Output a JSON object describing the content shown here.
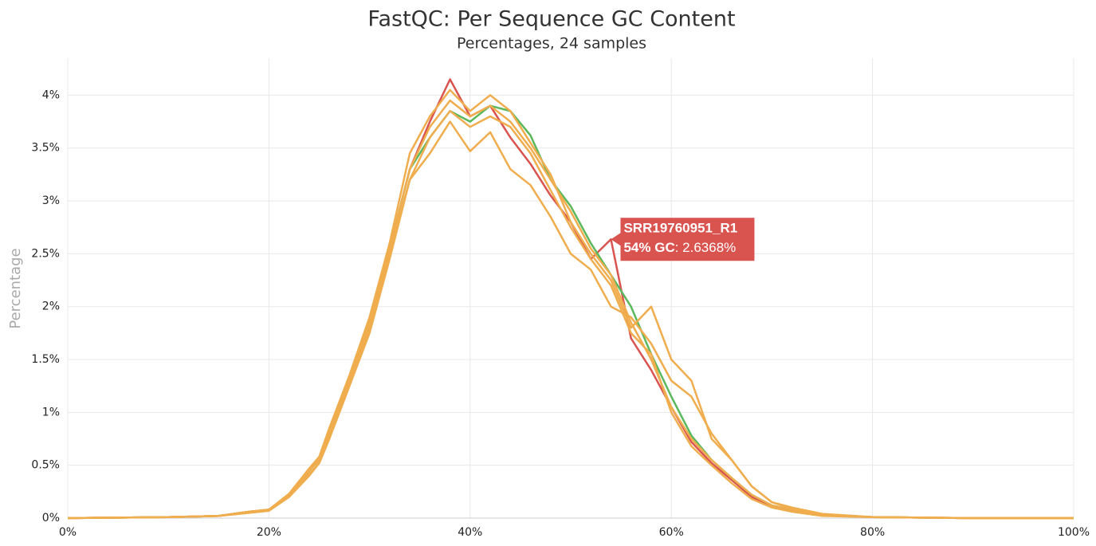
{
  "chart_data": {
    "type": "line",
    "title": "FastQC: Per Sequence GC Content",
    "subtitle": "Percentages, 24 samples",
    "y_label": "Percentage",
    "xlim": [
      0,
      100
    ],
    "ylim": [
      0,
      4.35
    ],
    "xticks": [
      {
        "value": 0,
        "label": "0%"
      },
      {
        "value": 20,
        "label": "20%"
      },
      {
        "value": 40,
        "label": "40%"
      },
      {
        "value": 60,
        "label": "60%"
      },
      {
        "value": 80,
        "label": "80%"
      },
      {
        "value": 100,
        "label": "100%"
      }
    ],
    "yticks": [
      {
        "value": 0,
        "label": "0%"
      },
      {
        "value": 0.5,
        "label": "0.5%"
      },
      {
        "value": 1,
        "label": "1%"
      },
      {
        "value": 1.5,
        "label": "1.5%"
      },
      {
        "value": 2,
        "label": "2%"
      },
      {
        "value": 2.5,
        "label": "2.5%"
      },
      {
        "value": 3,
        "label": "3%"
      },
      {
        "value": 3.5,
        "label": "3.5%"
      },
      {
        "value": 4,
        "label": "4%"
      }
    ],
    "grid": true,
    "x": [
      0,
      10,
      15,
      18,
      20,
      22,
      24,
      25,
      26,
      28,
      30,
      32,
      34,
      36,
      38,
      40,
      42,
      44,
      46,
      48,
      50,
      52,
      54,
      56,
      58,
      60,
      62,
      64,
      66,
      68,
      70,
      72,
      75,
      80,
      90,
      100
    ],
    "series": [
      {
        "name": "SRR19760951_R1",
        "color": "#d9534f",
        "values": [
          0,
          0.01,
          0.02,
          0.06,
          0.08,
          0.22,
          0.45,
          0.55,
          0.8,
          1.3,
          1.85,
          2.55,
          3.3,
          3.75,
          4.15,
          3.8,
          3.9,
          3.6,
          3.35,
          3.05,
          2.8,
          2.45,
          2.6368,
          1.7,
          1.4,
          1.05,
          0.72,
          0.52,
          0.36,
          0.2,
          0.11,
          0.07,
          0.03,
          0.01,
          0,
          0
        ]
      },
      {
        "color": "#5cb85c",
        "values": [
          0,
          0.01,
          0.02,
          0.06,
          0.08,
          0.22,
          0.45,
          0.55,
          0.8,
          1.3,
          1.85,
          2.55,
          3.3,
          3.6,
          3.85,
          3.75,
          3.9,
          3.85,
          3.62,
          3.2,
          2.95,
          2.6,
          2.3,
          2.0,
          1.55,
          1.15,
          0.78,
          0.55,
          0.38,
          0.22,
          0.12,
          0.08,
          0.03,
          0.01,
          0,
          0
        ]
      },
      {
        "color": "#f0ad4e",
        "values": [
          0,
          0.01,
          0.02,
          0.06,
          0.08,
          0.22,
          0.45,
          0.55,
          0.8,
          1.3,
          1.85,
          2.55,
          3.3,
          3.7,
          3.95,
          3.8,
          3.9,
          3.75,
          3.5,
          3.2,
          2.9,
          2.55,
          2.3,
          1.85,
          1.5,
          1.05,
          0.75,
          0.55,
          0.38,
          0.22,
          0.12,
          0.08,
          0.03,
          0.01,
          0,
          0
        ]
      },
      {
        "color": "#f0ad4e",
        "values": [
          0,
          0.01,
          0.02,
          0.05,
          0.07,
          0.2,
          0.42,
          0.52,
          0.75,
          1.25,
          1.8,
          2.5,
          3.2,
          3.45,
          3.75,
          3.47,
          3.65,
          3.3,
          3.15,
          2.85,
          2.5,
          2.35,
          2.0,
          1.9,
          1.65,
          1.3,
          1.15,
          0.8,
          0.55,
          0.3,
          0.15,
          0.09,
          0.04,
          0.01,
          0,
          0
        ]
      },
      {
        "color": "#f0ad4e",
        "values": [
          0,
          0.01,
          0.02,
          0.06,
          0.08,
          0.23,
          0.47,
          0.58,
          0.85,
          1.35,
          1.9,
          2.6,
          3.45,
          3.8,
          4.05,
          3.85,
          4.0,
          3.85,
          3.55,
          3.25,
          2.8,
          2.5,
          2.25,
          1.8,
          2.0,
          1.5,
          1.3,
          0.75,
          0.55,
          0.3,
          0.15,
          0.1,
          0.04,
          0.01,
          0,
          0
        ]
      },
      {
        "color": "#f0ad4e",
        "values": [
          0,
          0.01,
          0.02,
          0.05,
          0.07,
          0.2,
          0.4,
          0.52,
          0.75,
          1.25,
          1.75,
          2.45,
          3.2,
          3.6,
          3.85,
          3.7,
          3.8,
          3.7,
          3.45,
          3.1,
          2.75,
          2.45,
          2.2,
          1.75,
          1.55,
          1.0,
          0.68,
          0.5,
          0.33,
          0.18,
          0.1,
          0.06,
          0.02,
          0.01,
          0,
          0
        ]
      }
    ],
    "tooltip": {
      "series": 0,
      "x": 54,
      "x_label": "54% GC",
      "value": 2.6368,
      "value_label": ": 2.6368%"
    }
  }
}
